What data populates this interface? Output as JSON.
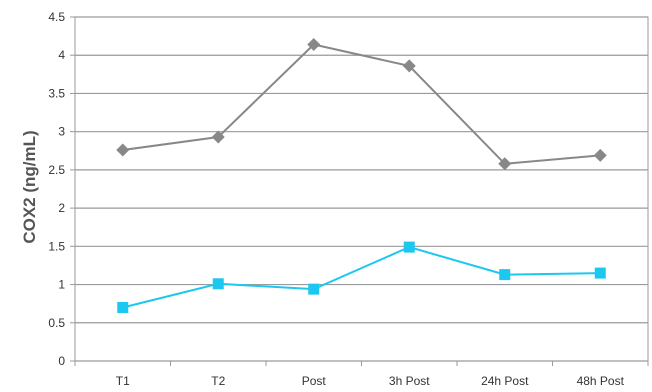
{
  "chart_data": {
    "type": "line",
    "title": "",
    "xlabel": "",
    "ylabel": "COX2 (ng/mL)",
    "categories": [
      "T1",
      "T2",
      "Post",
      "3h Post",
      "24h Post",
      "48h Post"
    ],
    "ylim": [
      0,
      4.5
    ],
    "yticks": [
      "0",
      "0.5",
      "1",
      "1.5",
      "2",
      "2.5",
      "3",
      "3.5",
      "4",
      "4.5"
    ],
    "grid": true,
    "legend": "none",
    "series": [
      {
        "values": [
          2.76,
          2.93,
          4.14,
          3.86,
          2.58,
          2.69
        ],
        "color": "#888888",
        "marker": "diamond"
      },
      {
        "values": [
          0.7,
          1.01,
          0.94,
          1.49,
          1.13,
          1.15
        ],
        "color": "#1cc7f0",
        "marker": "square"
      }
    ]
  }
}
